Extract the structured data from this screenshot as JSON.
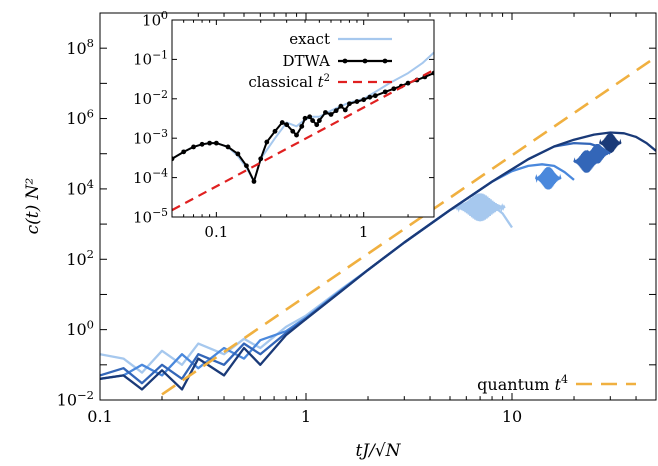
{
  "chart_data": [
    {
      "type": "line",
      "title": "",
      "xlabel": "tJ/√N",
      "ylabel": "c(t) N²",
      "xscale": "log",
      "yscale": "log",
      "xlim": [
        0.1,
        50
      ],
      "ylim": [
        0.01,
        1000000000
      ],
      "xticks": [
        {
          "value": 0.1,
          "label": "0.1"
        },
        {
          "value": 1,
          "label": "1"
        },
        {
          "value": 10,
          "label": "10"
        }
      ],
      "yticks": [
        {
          "value": 0.01,
          "mant": "10",
          "exp": "−2"
        },
        {
          "value": 1,
          "mant": "10",
          "exp": "0"
        },
        {
          "value": 100,
          "mant": "10",
          "exp": "2"
        },
        {
          "value": 10000,
          "mant": "10",
          "exp": "4"
        },
        {
          "value": 1000000,
          "mant": "10",
          "exp": "6"
        },
        {
          "value": 100000000,
          "mant": "10",
          "exp": "8"
        }
      ],
      "legend_position": "bottom-right",
      "legend": {
        "label": "quantum ",
        "sup": "4",
        "var": "t"
      },
      "reference": {
        "name": "quantum t4",
        "x": [
          0.2,
          50
        ],
        "y": [
          0.0144,
          56250000
        ],
        "color": "#f0b040"
      },
      "series": [
        {
          "color": "#a6c8ee",
          "x": [
            0.1,
            0.13,
            0.16,
            0.2,
            0.25,
            0.3,
            0.4,
            0.5,
            0.6,
            0.8,
            1,
            1.5,
            2,
            3,
            4,
            5,
            6,
            7,
            8,
            9,
            10
          ],
          "y": [
            0.2,
            0.15,
            0.06,
            0.25,
            0.1,
            0.4,
            0.2,
            0.55,
            0.3,
            1.2,
            2.5,
            15,
            50,
            300,
            1000,
            2500,
            4000,
            4500,
            3500,
            2000,
            800
          ]
        },
        {
          "color": "#4a88dc",
          "x": [
            0.1,
            0.13,
            0.16,
            0.2,
            0.25,
            0.3,
            0.4,
            0.5,
            0.6,
            0.8,
            1,
            1.5,
            2,
            3,
            5,
            8,
            10,
            12,
            14,
            16,
            18,
            20
          ],
          "y": [
            0.04,
            0.05,
            0.1,
            0.05,
            0.2,
            0.08,
            0.3,
            0.15,
            0.5,
            0.9,
            2.2,
            14,
            50,
            300,
            2500,
            16000,
            32000,
            45000,
            50000,
            45000,
            30000,
            18000
          ]
        },
        {
          "color": "#3366b8",
          "x": [
            0.1,
            0.13,
            0.16,
            0.2,
            0.25,
            0.3,
            0.4,
            0.5,
            0.6,
            0.8,
            1,
            1.5,
            2,
            3,
            5,
            8,
            12,
            16,
            20,
            24,
            27,
            30
          ],
          "y": [
            0.05,
            0.08,
            0.03,
            0.1,
            0.04,
            0.2,
            0.1,
            0.4,
            0.2,
            0.8,
            2,
            13,
            50,
            300,
            2500,
            16000,
            70000,
            160000,
            200000,
            190000,
            150000,
            100000
          ]
        },
        {
          "color": "#1a3a78",
          "x": [
            0.1,
            0.13,
            0.16,
            0.2,
            0.25,
            0.3,
            0.4,
            0.5,
            0.6,
            0.8,
            1,
            1.5,
            2,
            3,
            5,
            8,
            12,
            16,
            20,
            25,
            30,
            35,
            40,
            45,
            50
          ],
          "y": [
            0.04,
            0.05,
            0.02,
            0.07,
            0.02,
            0.15,
            0.05,
            0.3,
            0.1,
            0.7,
            2,
            13,
            50,
            300,
            2500,
            16000,
            70000,
            160000,
            250000,
            350000,
            400000,
            380000,
            300000,
            200000,
            120000
          ]
        }
      ],
      "noise_bursts": [
        {
          "color": "#a6c8ee",
          "x": 7,
          "y": 3000,
          "halfwidth": 0.12,
          "height": 1.0
        },
        {
          "color": "#4a88dc",
          "x": 15,
          "y": 20000,
          "halfwidth": 0.06,
          "height": 0.8
        },
        {
          "color": "#3366b8",
          "x": 23,
          "y": 60000,
          "halfwidth": 0.06,
          "height": 0.8
        },
        {
          "color": "#3366b8",
          "x": 26,
          "y": 100000,
          "halfwidth": 0.05,
          "height": 0.7
        },
        {
          "color": "#1a3a78",
          "x": 30,
          "y": 200000,
          "halfwidth": 0.05,
          "height": 0.7
        }
      ]
    },
    {
      "type": "line",
      "title": "",
      "xlabel": "",
      "ylabel": "",
      "xscale": "log",
      "yscale": "log",
      "xlim": [
        0.05,
        3
      ],
      "ylim": [
        1e-05,
        1
      ],
      "xticks": [
        {
          "value": 0.1,
          "label": "0.1"
        },
        {
          "value": 1,
          "label": "1"
        }
      ],
      "yticks": [
        {
          "value": 1e-05,
          "mant": "10",
          "exp": "−5"
        },
        {
          "value": 0.0001,
          "mant": "10",
          "exp": "−4"
        },
        {
          "value": 0.001,
          "mant": "10",
          "exp": "−3"
        },
        {
          "value": 0.01,
          "mant": "10",
          "exp": "−2"
        },
        {
          "value": 0.1,
          "mant": "10",
          "exp": "−1"
        },
        {
          "value": 1,
          "mant": "10",
          "exp": "0"
        }
      ],
      "legend_position": "top-right",
      "series": [
        {
          "name": "exact",
          "color": "#a6c8ee",
          "marker": false,
          "x": [
            0.05,
            0.06,
            0.07,
            0.08,
            0.09,
            0.1,
            0.12,
            0.14,
            0.16,
            0.18,
            0.2,
            0.25,
            0.3,
            0.35,
            0.4,
            0.45,
            0.5,
            0.6,
            0.7,
            0.8,
            1,
            1.2,
            1.5,
            2,
            2.5,
            3
          ],
          "y": [
            0.0003,
            0.00045,
            0.0006,
            0.0007,
            0.00075,
            0.00075,
            0.0006,
            0.00035,
            0.00018,
            8e-05,
            0.0003,
            0.001,
            0.0025,
            0.002,
            0.003,
            0.0035,
            0.0035,
            0.005,
            0.0065,
            0.008,
            0.01,
            0.015,
            0.025,
            0.045,
            0.08,
            0.15
          ]
        },
        {
          "name": "DTWA",
          "color": "#000000",
          "marker": true,
          "x": [
            0.05,
            0.06,
            0.07,
            0.08,
            0.09,
            0.1,
            0.12,
            0.14,
            0.16,
            0.18,
            0.2,
            0.22,
            0.25,
            0.28,
            0.3,
            0.33,
            0.35,
            0.38,
            0.4,
            0.43,
            0.45,
            0.48,
            0.5,
            0.55,
            0.6,
            0.65,
            0.7,
            0.75,
            0.8,
            0.9,
            1,
            1.1,
            1.2,
            1.4,
            1.6,
            1.8,
            2,
            2.3,
            2.6,
            3
          ],
          "y": [
            0.0003,
            0.00045,
            0.0006,
            0.0007,
            0.00075,
            0.00075,
            0.0006,
            0.0004,
            0.0002,
            8e-05,
            0.0003,
            0.0008,
            0.0015,
            0.0025,
            0.0022,
            0.0015,
            0.0012,
            0.002,
            0.0032,
            0.0035,
            0.0028,
            0.0022,
            0.0028,
            0.0045,
            0.004,
            0.005,
            0.0065,
            0.0052,
            0.0075,
            0.0085,
            0.0095,
            0.011,
            0.012,
            0.015,
            0.018,
            0.021,
            0.025,
            0.03,
            0.036,
            0.045
          ]
        },
        {
          "name": "classical t2",
          "color": "#e02020",
          "marker": false,
          "dashed": true,
          "x": [
            0.05,
            3
          ],
          "y": [
            1.5e-05,
            0.054
          ]
        }
      ],
      "legend": [
        {
          "label": "exact",
          "sup": "",
          "var": ""
        },
        {
          "label": "DTWA",
          "sup": "",
          "var": ""
        },
        {
          "label": "classical ",
          "sup": "2",
          "var": "t"
        }
      ]
    }
  ]
}
